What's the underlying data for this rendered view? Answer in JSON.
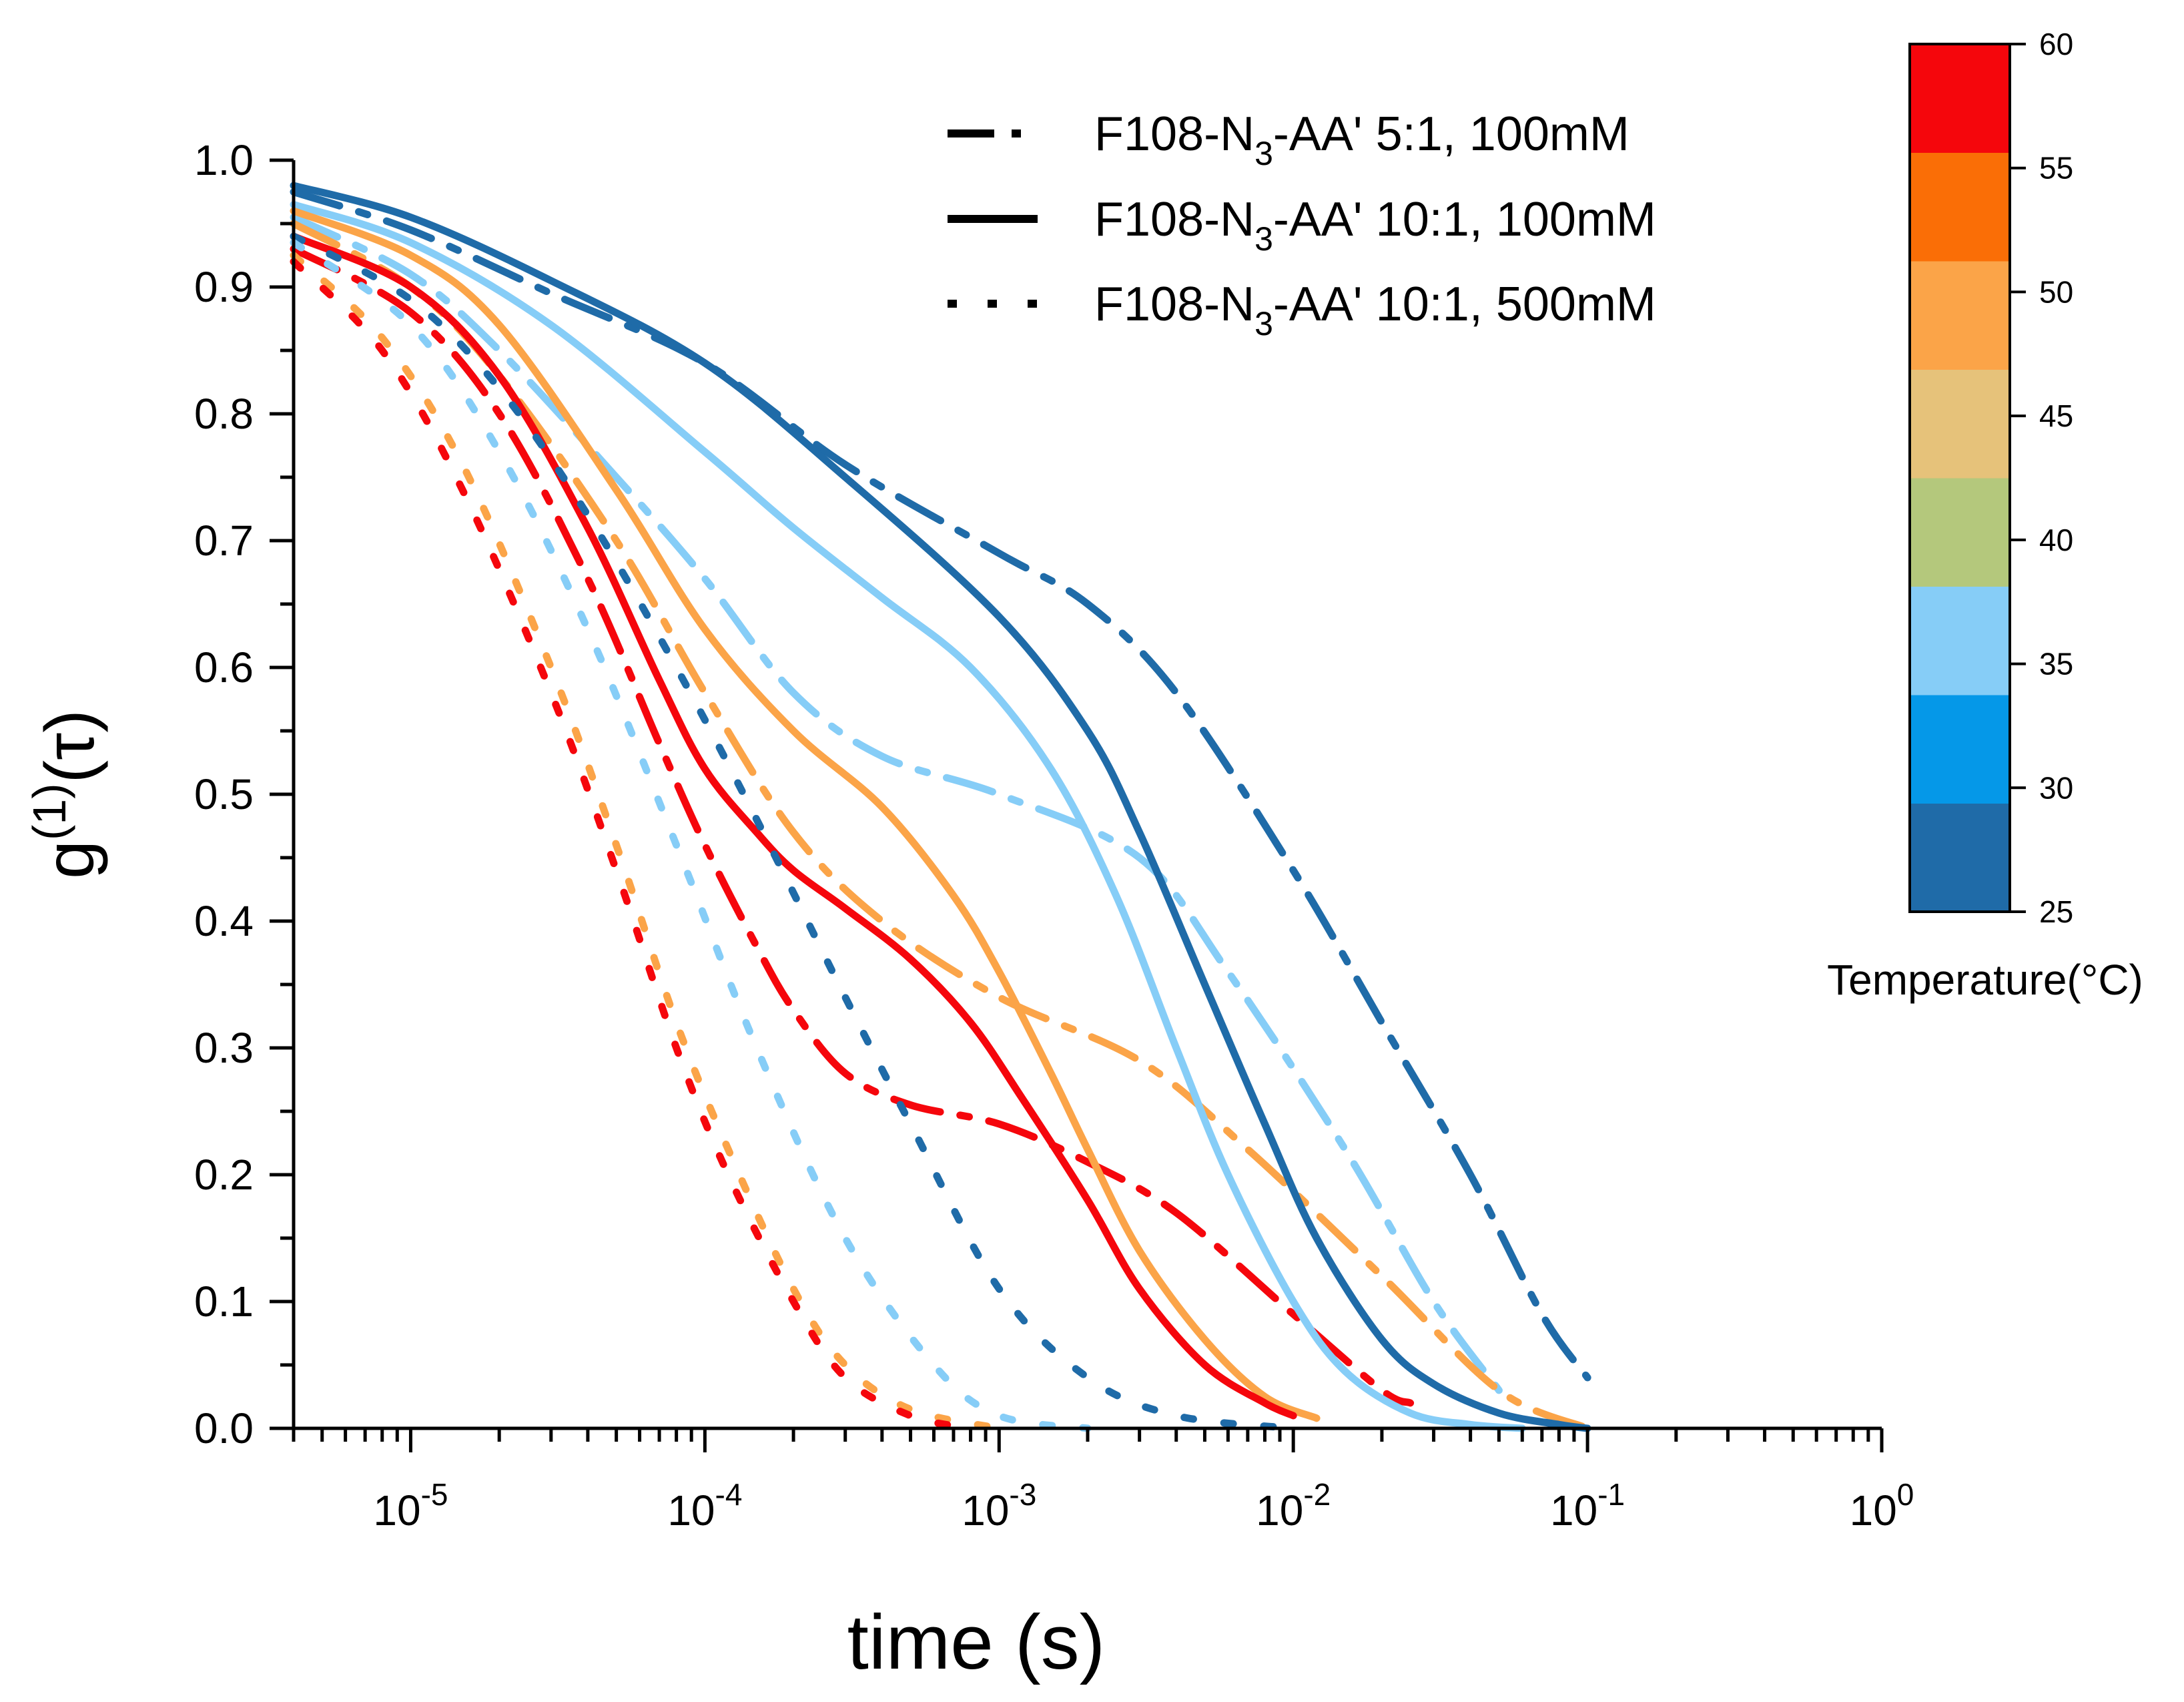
{
  "chart_data": {
    "type": "line",
    "title": "",
    "xlabel": "time (s)",
    "ylabel": {
      "base": "g",
      "sup": "(1)",
      "tail": "(τ)"
    },
    "xscale": "log",
    "xlim": [
      4e-06,
      1
    ],
    "ylim": [
      0,
      1
    ],
    "x_ticks": [
      {
        "value": 1e-05,
        "base": "10",
        "exp": "-5"
      },
      {
        "value": 0.0001,
        "base": "10",
        "exp": "-4"
      },
      {
        "value": 0.001,
        "base": "10",
        "exp": "-3"
      },
      {
        "value": 0.01,
        "base": "10",
        "exp": "-2"
      },
      {
        "value": 0.1,
        "base": "10",
        "exp": "-1"
      },
      {
        "value": 1,
        "base": "10",
        "exp": "0"
      }
    ],
    "y_ticks": [
      "0.0",
      "0.1",
      "0.2",
      "0.3",
      "0.4",
      "0.5",
      "0.6",
      "0.7",
      "0.8",
      "0.9",
      "1.0"
    ],
    "legend": {
      "position": "top-center",
      "entries": [
        {
          "style": "dashdot",
          "label_pre": "F108-N",
          "label_sub": "3",
          "label_post": "-AA' 5:1, 100mM"
        },
        {
          "style": "solid",
          "label_pre": "F108-N",
          "label_sub": "3",
          "label_post": "-AA' 10:1, 100mM"
        },
        {
          "style": "dot",
          "label_pre": "F108-N",
          "label_sub": "3",
          "label_post": "-AA' 10:1, 500mM"
        }
      ]
    },
    "colorbar": {
      "title": "Temperature(°C)",
      "ticks": [
        "25",
        "30",
        "35",
        "40",
        "45",
        "50",
        "55",
        "60"
      ],
      "colors": [
        "#1f6ba8",
        "#0598e8",
        "#86cdf7",
        "#b4c87c",
        "#e6c27a",
        "#fba448",
        "#fa6e06",
        "#f5060c"
      ]
    },
    "series": [
      {
        "name": "5:1 100mM 25°C",
        "style": "dashdot",
        "color": "#1f6ba8",
        "x": [
          4e-06,
          1e-05,
          3e-05,
          0.0001,
          0.0003,
          0.001,
          0.002,
          0.004,
          0.01,
          0.02,
          0.04,
          0.07,
          0.1
        ],
        "y": [
          0.975,
          0.945,
          0.895,
          0.84,
          0.76,
          0.69,
          0.65,
          0.58,
          0.44,
          0.32,
          0.2,
          0.09,
          0.04
        ]
      },
      {
        "name": "5:1 100mM 35°C",
        "style": "dashdot",
        "color": "#86cdf7",
        "x": [
          4e-06,
          1e-05,
          2e-05,
          5e-05,
          0.0001,
          0.0002,
          0.0004,
          0.001,
          0.003,
          0.006,
          0.015,
          0.03,
          0.05
        ],
        "y": [
          0.955,
          0.91,
          0.85,
          0.75,
          0.67,
          0.58,
          0.53,
          0.5,
          0.45,
          0.36,
          0.22,
          0.1,
          0.03
        ]
      },
      {
        "name": "5:1 100mM 50°C",
        "style": "dashdot",
        "color": "#fba448",
        "x": [
          4e-06,
          1e-05,
          2e-05,
          5e-05,
          0.0001,
          0.0002,
          0.0004,
          0.001,
          0.003,
          0.007,
          0.02,
          0.05,
          0.1
        ],
        "y": [
          0.95,
          0.9,
          0.83,
          0.7,
          0.58,
          0.47,
          0.4,
          0.34,
          0.29,
          0.22,
          0.12,
          0.03,
          0.0
        ]
      },
      {
        "name": "5:1 100mM 60°C",
        "style": "dashdot",
        "color": "#f5060c",
        "x": [
          4e-06,
          1e-05,
          2e-05,
          4e-05,
          7e-05,
          0.0001,
          0.00015,
          0.0002,
          0.0003,
          0.0005,
          0.001,
          0.002,
          0.004,
          0.01,
          0.02,
          0.025
        ],
        "y": [
          0.93,
          0.88,
          0.8,
          0.67,
          0.54,
          0.46,
          0.38,
          0.33,
          0.28,
          0.255,
          0.24,
          0.21,
          0.17,
          0.09,
          0.03,
          0.02
        ]
      },
      {
        "name": "10:1 100mM 25°C",
        "style": "solid",
        "color": "#1f6ba8",
        "x": [
          4e-06,
          1e-05,
          3e-05,
          0.0001,
          0.0003,
          0.001,
          0.002,
          0.003,
          0.005,
          0.008,
          0.012,
          0.02,
          0.03,
          0.05,
          0.08,
          0.1
        ],
        "y": [
          0.98,
          0.955,
          0.905,
          0.84,
          0.75,
          0.64,
          0.55,
          0.47,
          0.35,
          0.24,
          0.15,
          0.07,
          0.035,
          0.012,
          0.003,
          0.0
        ]
      },
      {
        "name": "10:1 100mM 35°C",
        "style": "solid",
        "color": "#86cdf7",
        "x": [
          4e-06,
          1e-05,
          3e-05,
          0.0001,
          0.0002,
          0.0004,
          0.0008,
          0.0015,
          0.0025,
          0.004,
          0.006,
          0.01,
          0.015,
          0.025,
          0.04,
          0.06
        ],
        "y": [
          0.965,
          0.935,
          0.87,
          0.77,
          0.71,
          0.655,
          0.6,
          0.52,
          0.42,
          0.3,
          0.2,
          0.1,
          0.045,
          0.012,
          0.003,
          0.0
        ]
      },
      {
        "name": "10:1 100mM 50°C",
        "style": "solid",
        "color": "#fba448",
        "x": [
          4e-06,
          1e-05,
          2e-05,
          5e-05,
          0.0001,
          0.0002,
          0.0004,
          0.0007,
          0.001,
          0.0015,
          0.002,
          0.003,
          0.005,
          0.008,
          0.012
        ],
        "y": [
          0.96,
          0.925,
          0.87,
          0.74,
          0.63,
          0.55,
          0.49,
          0.42,
          0.36,
          0.28,
          0.22,
          0.14,
          0.07,
          0.025,
          0.008
        ]
      },
      {
        "name": "10:1 100mM 60°C",
        "style": "solid",
        "color": "#f5060c",
        "x": [
          4e-06,
          1e-05,
          2e-05,
          4e-05,
          7e-05,
          0.0001,
          0.00015,
          0.0002,
          0.0003,
          0.0005,
          0.0008,
          0.0012,
          0.002,
          0.003,
          0.005,
          0.008,
          0.01
        ],
        "y": [
          0.94,
          0.9,
          0.83,
          0.71,
          0.59,
          0.52,
          0.47,
          0.44,
          0.41,
          0.37,
          0.32,
          0.26,
          0.18,
          0.11,
          0.05,
          0.02,
          0.01
        ]
      },
      {
        "name": "10:1 500mM 25°C",
        "style": "dot",
        "color": "#1f6ba8",
        "x": [
          4e-06,
          1e-05,
          2e-05,
          4e-05,
          8e-05,
          0.00015,
          0.0003,
          0.0005,
          0.001,
          0.002,
          0.004,
          0.01
        ],
        "y": [
          0.94,
          0.89,
          0.82,
          0.72,
          0.6,
          0.48,
          0.34,
          0.24,
          0.11,
          0.04,
          0.01,
          0.0
        ]
      },
      {
        "name": "10:1 500mM 35°C",
        "style": "dot",
        "color": "#86cdf7",
        "x": [
          4e-06,
          1e-05,
          2e-05,
          4e-05,
          8e-05,
          0.00015,
          0.0003,
          0.0006,
          0.001,
          0.002
        ],
        "y": [
          0.935,
          0.87,
          0.77,
          0.63,
          0.46,
          0.3,
          0.15,
          0.05,
          0.01,
          0.0
        ]
      },
      {
        "name": "10:1 500mM 50°C",
        "style": "dot",
        "color": "#fba448",
        "x": [
          4e-06,
          8e-06,
          1.5e-05,
          3e-05,
          5e-05,
          8e-05,
          0.00012,
          0.0002,
          0.0003,
          0.0005,
          0.001
        ],
        "y": [
          0.925,
          0.86,
          0.76,
          0.6,
          0.46,
          0.32,
          0.22,
          0.11,
          0.05,
          0.015,
          0.0
        ]
      },
      {
        "name": "10:1 500mM 60°C",
        "style": "dot",
        "color": "#f5060c",
        "x": [
          4e-06,
          8e-06,
          1.5e-05,
          3e-05,
          5e-05,
          8e-05,
          0.00012,
          0.0002,
          0.0003,
          0.0005,
          0.0008
        ],
        "y": [
          0.92,
          0.85,
          0.74,
          0.58,
          0.44,
          0.3,
          0.2,
          0.1,
          0.04,
          0.01,
          0.0
        ]
      }
    ]
  }
}
